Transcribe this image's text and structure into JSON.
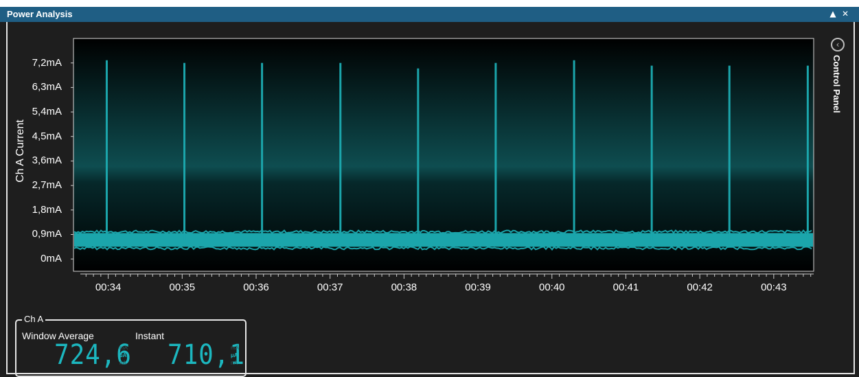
{
  "window": {
    "title": "Power Analysis",
    "collapse_icon": "chevron-up-icon",
    "collapse_glyph": "▲",
    "close_glyph": "✕"
  },
  "control_panel": {
    "label": "Control Panel",
    "icon": "chevron-left-circle-icon",
    "glyph": "‹"
  },
  "chart_data": {
    "type": "line",
    "xlabel": "",
    "ylabel": "Ch A Current",
    "y_unit": "mA",
    "y_ticks": [
      "7,2mA",
      "6,3mA",
      "5,4mA",
      "4,5mA",
      "3,6mA",
      "2,7mA",
      "1,8mA",
      "0,9mA",
      "0mA"
    ],
    "ylim": [
      -0.45,
      8.1
    ],
    "x_ticks": [
      "00:34",
      "00:35",
      "00:36",
      "00:37",
      "00:38",
      "00:39",
      "00:40",
      "00:41",
      "00:42",
      "00:43"
    ],
    "xlim_seconds": [
      33.53,
      43.54
    ],
    "baseline_mA": 0.7,
    "series": [
      {
        "color": "#1ba5ab",
        "spike_times": [
          "00:33.98",
          "00:35.03",
          "00:36.08",
          "00:37.14",
          "00:38.19",
          "00:39.24",
          "00:40.30",
          "00:41.35",
          "00:42.40",
          "00:43.46"
        ],
        "spike_peaks_mA": [
          7.3,
          7.2,
          7.2,
          7.2,
          7.0,
          7.2,
          7.3,
          7.1,
          7.1,
          7.1
        ]
      }
    ],
    "grid": false,
    "colors": {
      "line": "#1ba5ab",
      "plot_bg_top": "#0e4d50",
      "plot_bg_bottom": "#000000"
    }
  },
  "channel_panel": {
    "title": "Ch A",
    "window_average": {
      "label": "Window Average",
      "value": "724,6",
      "units": [
        "mA",
        "µA",
        "nA"
      ],
      "active_unit": "µA"
    },
    "instant": {
      "label": "Instant",
      "value": "710,1",
      "units": [
        "mA",
        "µA",
        "nA"
      ],
      "active_unit": "µA"
    }
  }
}
